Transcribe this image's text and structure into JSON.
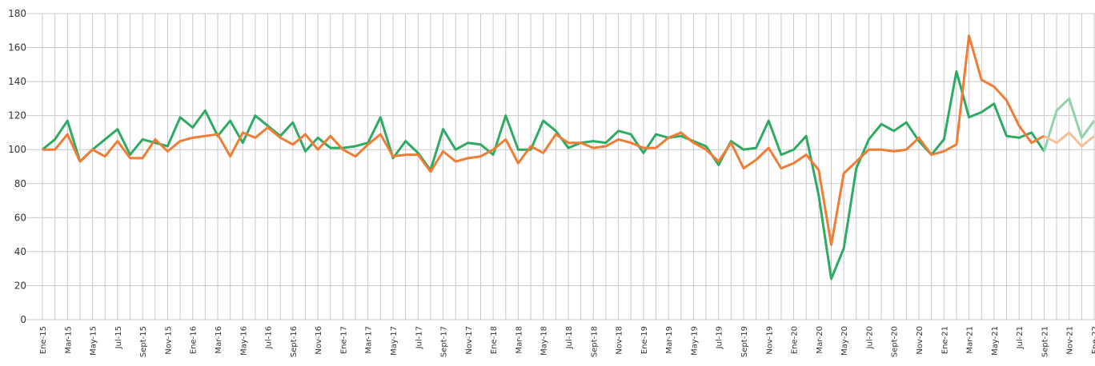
{
  "chart_data": {
    "type": "line",
    "categories": [
      "Ene-15",
      null,
      "Mar-15",
      null,
      "May-15",
      null,
      "Jul-15",
      null,
      "Sept-15",
      null,
      "Nov-15",
      null,
      "Ene-16",
      null,
      "Mar-16",
      null,
      "May-16",
      null,
      "Jul-16",
      null,
      "Sept-16",
      null,
      "Nov-16",
      null,
      "Ene-17",
      null,
      "Mar-17",
      null,
      "May-17",
      null,
      "Jul-17",
      null,
      "Sept-17",
      null,
      "Nov-17",
      null,
      "Ene-18",
      null,
      "Mar-18",
      null,
      "May-18",
      null,
      "Jul-18",
      null,
      "Sept-18",
      null,
      "Nov-18",
      null,
      "Ene-19",
      null,
      "Mar-19",
      null,
      "May-19",
      null,
      "Jul-19",
      null,
      "Sept-19",
      null,
      "Nov-19",
      null,
      "Ene-20",
      null,
      "Mar-20",
      null,
      "May-20",
      null,
      "Jul-20",
      null,
      "Sept-20",
      null,
      "Nov-20",
      null,
      "Ene-21",
      null,
      "Mar-21",
      null,
      "May-21",
      null,
      "Jul-21",
      null,
      "Sept-21",
      null,
      "Nov-21",
      null,
      "Ene-22"
    ],
    "series": [
      {
        "color": "#2eaa63",
        "faded_color": "#8fd3a8",
        "values": [
          100,
          106,
          117,
          93,
          100,
          106,
          112,
          97,
          106,
          104,
          102,
          119,
          113,
          123,
          108,
          117,
          104,
          120,
          114,
          108,
          116,
          99,
          107,
          101,
          101,
          102,
          104,
          119,
          95,
          105,
          98,
          88,
          112,
          100,
          104,
          103,
          97,
          120,
          100,
          100,
          117,
          111,
          101,
          104,
          105,
          104,
          111,
          109,
          98,
          109,
          107,
          108,
          105,
          102,
          91,
          105,
          100,
          101,
          117,
          97,
          100,
          108,
          73,
          24,
          42,
          89,
          106,
          115,
          111,
          116,
          105,
          97,
          106,
          146,
          119,
          122,
          127,
          108,
          107,
          110,
          99,
          123,
          130,
          107,
          117
        ]
      },
      {
        "color": "#ef7d35",
        "faded_color": "#f6bf98",
        "values": [
          100,
          100,
          109,
          93,
          100,
          96,
          105,
          95,
          95,
          106,
          99,
          105,
          107,
          108,
          109,
          96,
          110,
          107,
          113,
          107,
          103,
          109,
          100,
          108,
          100,
          96,
          103,
          109,
          96,
          97,
          97,
          87,
          99,
          93,
          95,
          96,
          100,
          106,
          92,
          102,
          98,
          109,
          104,
          104,
          101,
          102,
          106,
          104,
          101,
          101,
          107,
          110,
          104,
          100,
          93,
          104,
          89,
          94,
          101,
          89,
          92,
          97,
          88,
          44,
          86,
          93,
          100,
          100,
          99,
          100,
          107,
          97,
          99,
          103,
          167,
          141,
          137,
          129,
          114,
          104,
          108,
          104,
          110,
          102,
          108
        ]
      }
    ],
    "faded_from": "Sept-21",
    "ylim": [
      0,
      180
    ],
    "yticks": [
      0,
      20,
      40,
      60,
      80,
      100,
      120,
      140,
      160,
      180
    ],
    "grid": true
  }
}
